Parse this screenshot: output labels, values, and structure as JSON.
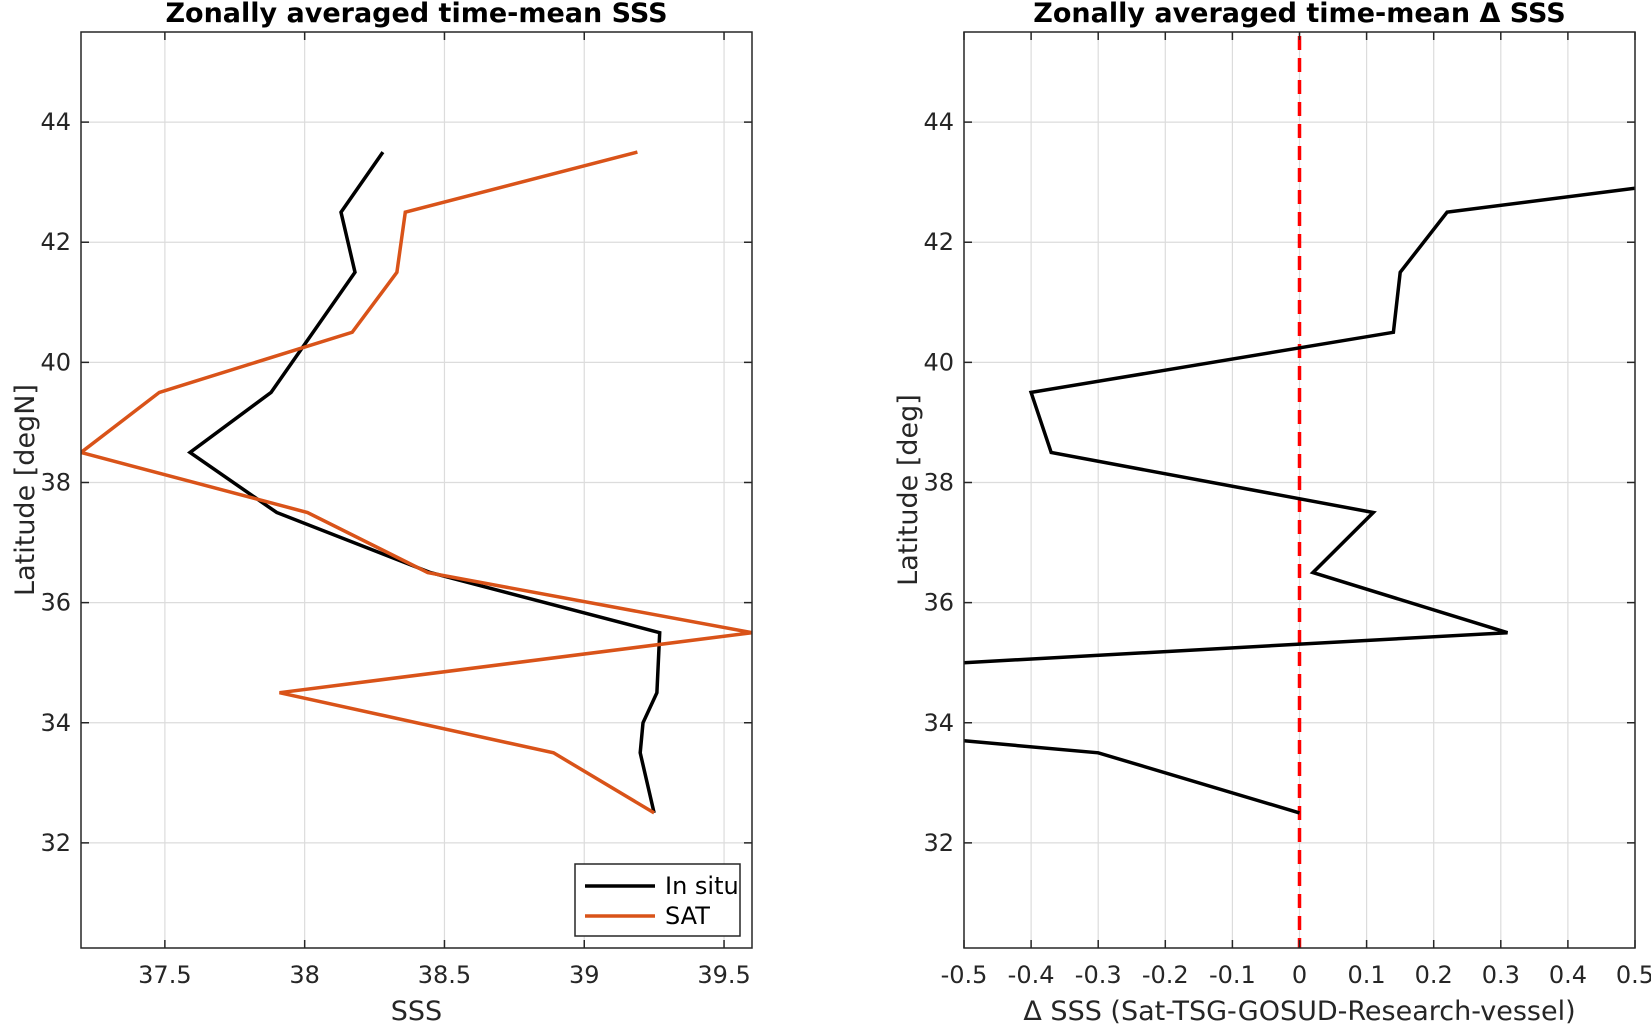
{
  "chart_data": [
    {
      "type": "line",
      "title": "Zonally averaged time-mean SSS",
      "xlabel": "SSS",
      "ylabel": "Latitude [degN]",
      "xlim": [
        37.2,
        39.6
      ],
      "ylim": [
        30.25,
        45.5
      ],
      "xticks": [
        37.5,
        38,
        38.5,
        39,
        39.5
      ],
      "xtick_labels": [
        "37.5",
        "38",
        "38.5",
        "39",
        "39.5"
      ],
      "yticks": [
        32,
        34,
        36,
        38,
        40,
        42,
        44
      ],
      "ytick_labels": [
        "32",
        "34",
        "36",
        "38",
        "40",
        "42",
        "44"
      ],
      "grid": true,
      "legend": "bottom-right",
      "series": [
        {
          "name": "In situ",
          "color": "#000000",
          "x": [
            39.25,
            39.2,
            39.21,
            39.26,
            39.27,
            38.45,
            37.9,
            37.59,
            37.88,
            38.18,
            38.13,
            38.28
          ],
          "y": [
            32.5,
            33.5,
            34.0,
            34.5,
            35.5,
            36.5,
            37.5,
            38.5,
            39.5,
            41.5,
            42.5,
            43.5
          ]
        },
        {
          "name": "SAT",
          "color": "#d95319",
          "x": [
            39.25,
            38.89,
            37.91,
            39.6,
            38.44,
            38.01,
            37.2,
            37.48,
            38.17,
            38.33,
            38.36,
            39.19
          ],
          "y": [
            32.5,
            33.5,
            34.5,
            35.5,
            36.5,
            37.5,
            38.5,
            39.5,
            40.5,
            41.5,
            42.5,
            43.5
          ]
        }
      ]
    },
    {
      "type": "line",
      "title": "Zonally averaged time-mean Δ SSS",
      "xlabel": "Δ SSS (Sat-TSG-GOSUD-Research-vessel)",
      "ylabel": "Latitude [deg]",
      "xlim": [
        -0.5,
        0.5
      ],
      "ylim": [
        30.25,
        45.5
      ],
      "xticks": [
        -0.5,
        -0.4,
        -0.3,
        -0.2,
        -0.1,
        0,
        0.1,
        0.2,
        0.3,
        0.4,
        0.5
      ],
      "xtick_labels": [
        "-0.5",
        "-0.4",
        "-0.3",
        "-0.2",
        "-0.1",
        "0",
        "0.1",
        "0.2",
        "0.3",
        "0.4",
        "0.5"
      ],
      "yticks": [
        32,
        34,
        36,
        38,
        40,
        42,
        44
      ],
      "ytick_labels": [
        "32",
        "34",
        "36",
        "38",
        "40",
        "42",
        "44"
      ],
      "grid": true,
      "reference_line": {
        "x": 0,
        "color": "#ff0000",
        "style": "dashed"
      },
      "series": [
        {
          "color": "#000000",
          "x": [
            0.0,
            -0.3,
            -0.5
          ],
          "y": [
            32.5,
            33.5,
            33.7
          ]
        },
        {
          "color": "#000000",
          "x": [
            -0.5,
            0.31,
            0.02,
            0.11,
            -0.37,
            -0.4,
            0.14,
            0.15,
            0.22,
            0.5
          ],
          "y": [
            35.0,
            35.5,
            36.5,
            37.5,
            38.5,
            39.5,
            40.5,
            41.5,
            42.5,
            42.9
          ]
        }
      ]
    }
  ]
}
